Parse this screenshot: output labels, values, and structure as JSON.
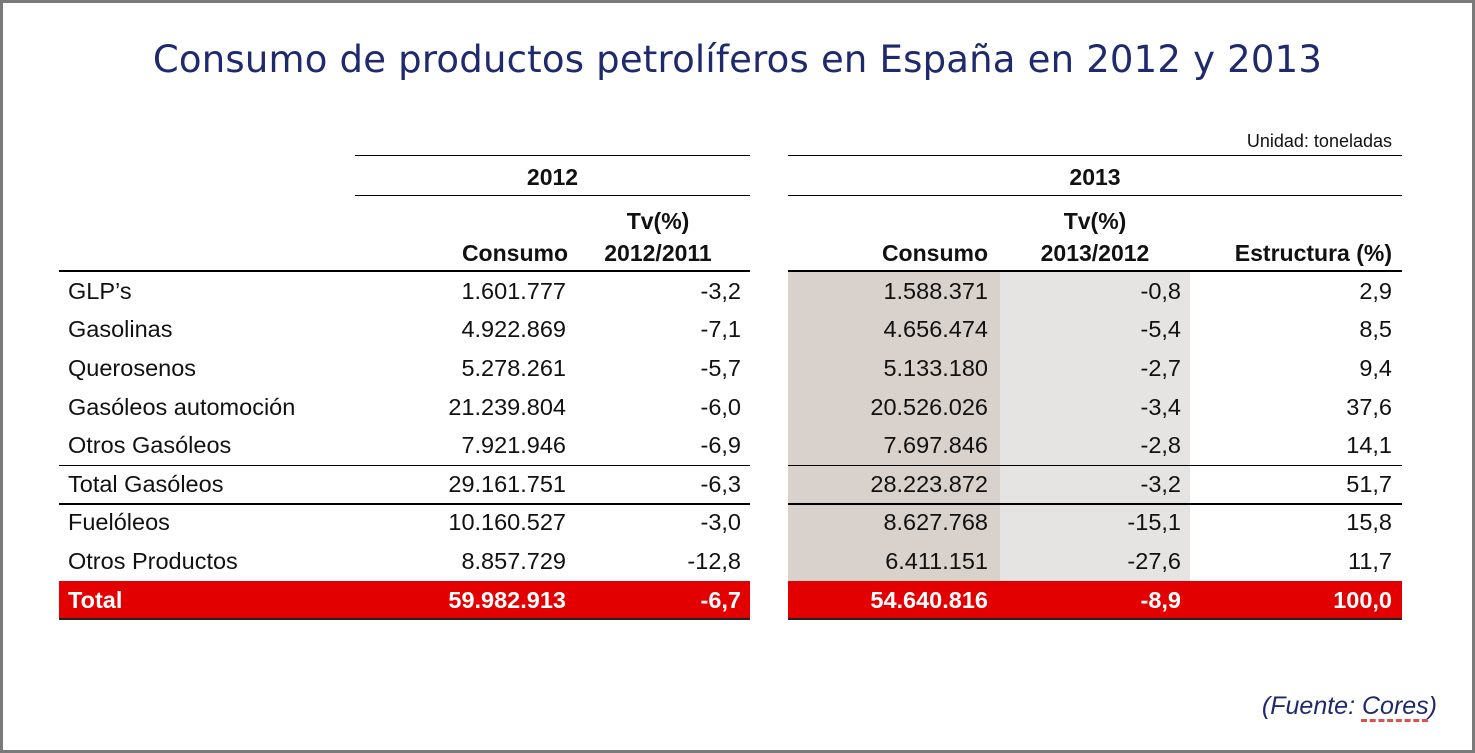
{
  "title": "Consumo de productos petrolíferos en España en 2012 y 2013",
  "unit": "Unidad: toneladas",
  "table_2012": {
    "year": "2012",
    "headers": {
      "consumo": "Consumo",
      "tv_line1": "Tv(%)",
      "tv_line2": "2012/2011"
    }
  },
  "table_2013": {
    "year": "2013",
    "headers": {
      "consumo": "Consumo",
      "tv_line1": "Tv(%)",
      "tv_line2": "2013/2012",
      "estructura": "Estructura (%)"
    }
  },
  "rows": [
    {
      "label": "GLP’s",
      "c2012": "1.601.777",
      "tv2012": "-3,2",
      "c2013": "1.588.371",
      "tv2013": "-0,8",
      "est": "2,9"
    },
    {
      "label": "Gasolinas",
      "c2012": "4.922.869",
      "tv2012": "-7,1",
      "c2013": "4.656.474",
      "tv2013": "-5,4",
      "est": "8,5"
    },
    {
      "label": "Querosenos",
      "c2012": "5.278.261",
      "tv2012": "-5,7",
      "c2013": "5.133.180",
      "tv2013": "-2,7",
      "est": "9,4"
    },
    {
      "label": "Gasóleos automoción",
      "c2012": "21.239.804",
      "tv2012": "-6,0",
      "c2013": "20.526.026",
      "tv2013": "-3,4",
      "est": "37,6"
    },
    {
      "label": "Otros Gasóleos",
      "c2012": "7.921.946",
      "tv2012": "-6,9",
      "c2013": "7.697.846",
      "tv2013": "-2,8",
      "est": "14,1"
    },
    {
      "label": "Total Gasóleos",
      "c2012": "29.161.751",
      "tv2012": "-6,3",
      "c2013": "28.223.872",
      "tv2013": "-3,2",
      "est": "51,7"
    },
    {
      "label": "Fuelóleos",
      "c2012": "10.160.527",
      "tv2012": "-3,0",
      "c2013": "8.627.768",
      "tv2013": "-15,1",
      "est": "15,8"
    },
    {
      "label": "Otros Productos",
      "c2012": "8.857.729",
      "tv2012": "-12,8",
      "c2013": "6.411.151",
      "tv2013": "-27,6",
      "est": "11,7"
    },
    {
      "label": "Total",
      "c2012": "59.982.913",
      "tv2012": "-6,7",
      "c2013": "54.640.816",
      "tv2013": "-8,9",
      "est": "100,0"
    }
  ],
  "source": {
    "prefix": "(Fuente: ",
    "name": "Cores",
    "suffix": ")"
  },
  "colors": {
    "title": "#1f2a6e",
    "total_row": "#e20000",
    "shade_consumo_2013": "#d9d1cc",
    "shade_tv_2013": "#e6e4e2"
  }
}
